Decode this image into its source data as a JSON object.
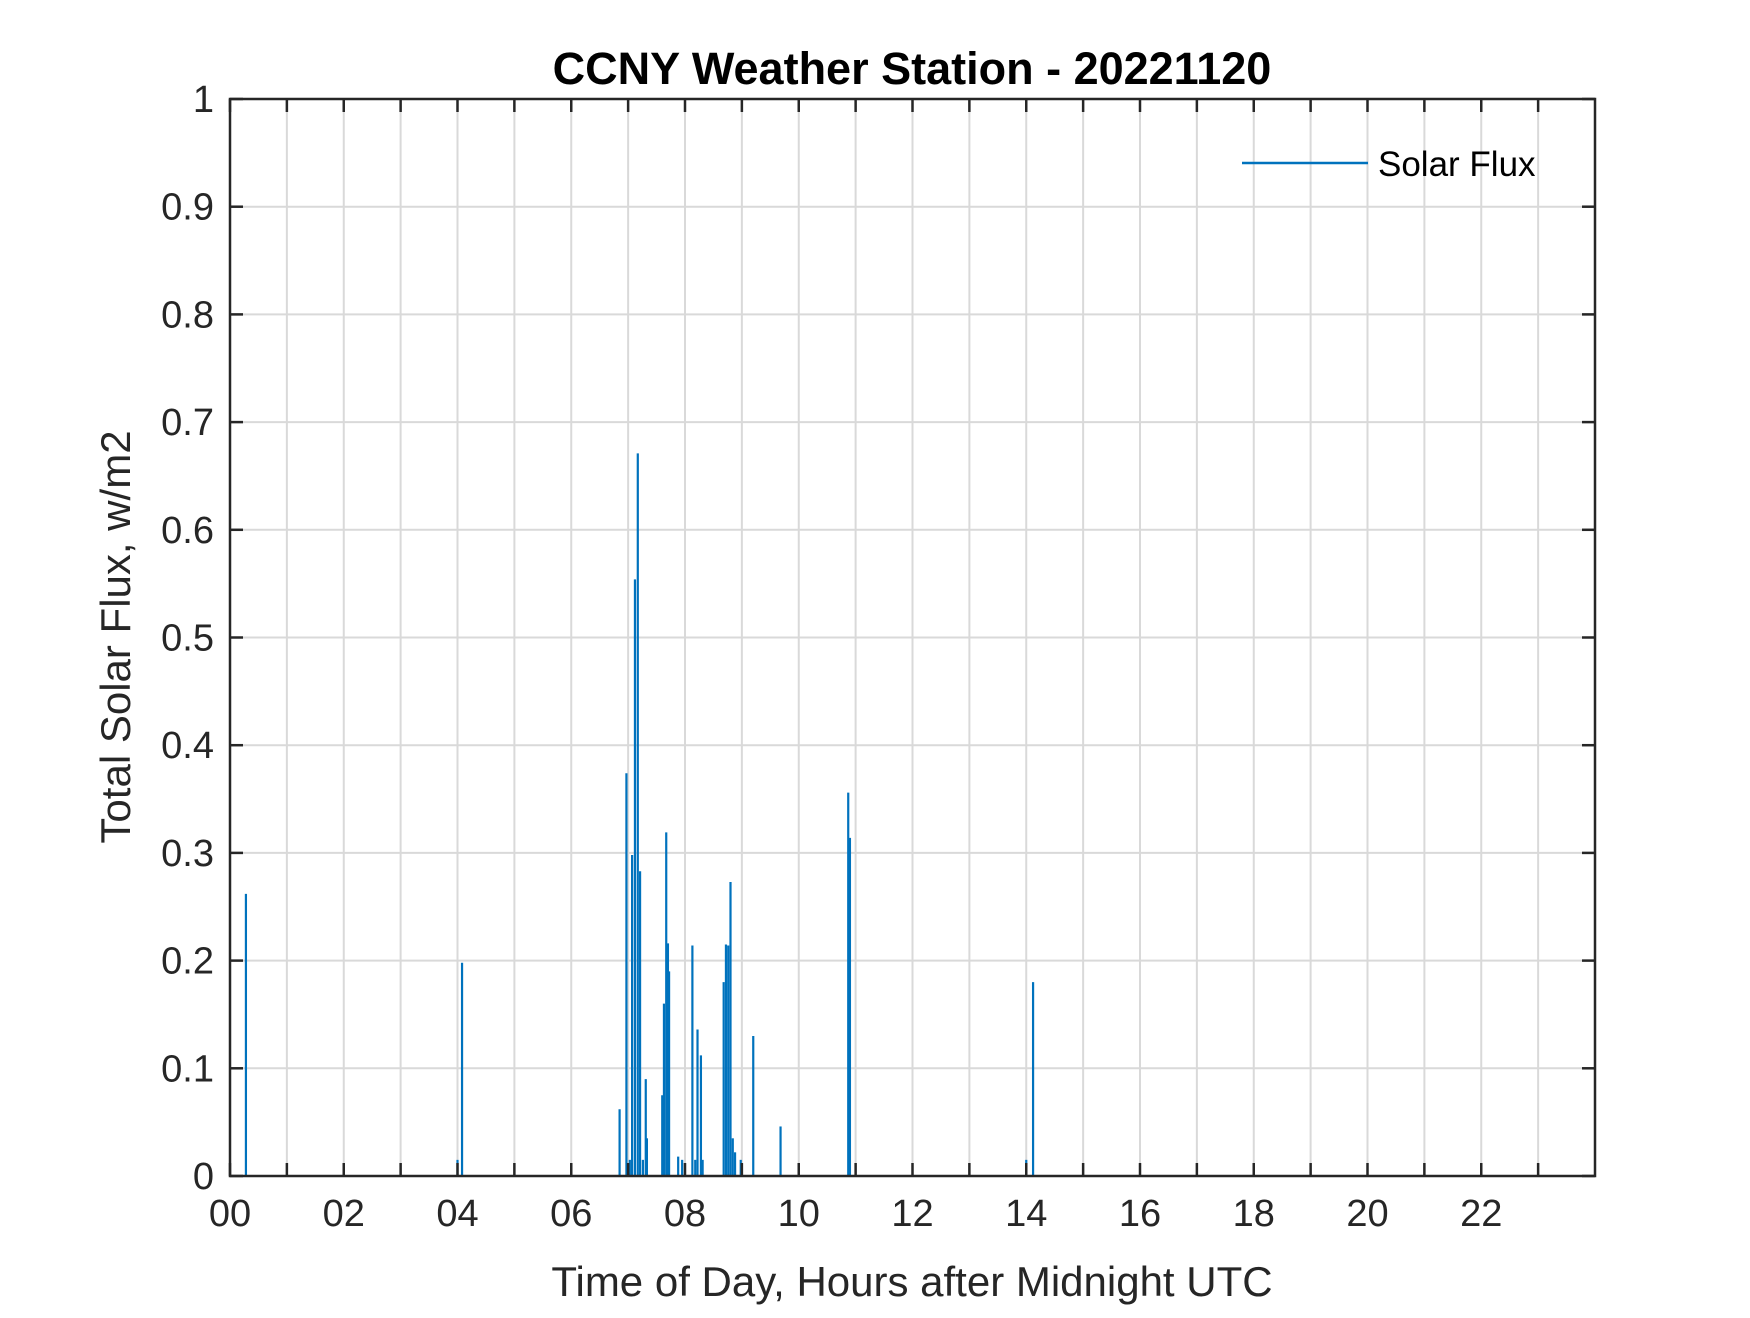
{
  "chart_data": {
    "type": "bar",
    "title": "CCNY Weather Station - 20221120",
    "xlabel": "Time of Day, Hours after Midnight UTC",
    "ylabel": "Total Solar Flux, w/m2",
    "xlim": [
      0,
      24
    ],
    "ylim": [
      0,
      1
    ],
    "grid": true,
    "legend_position": "top-right",
    "x_major_ticks": [
      0,
      2,
      4,
      6,
      8,
      10,
      12,
      14,
      16,
      18,
      20,
      22
    ],
    "x_tick_labels": [
      "00",
      "02",
      "04",
      "06",
      "08",
      "10",
      "12",
      "14",
      "16",
      "18",
      "20",
      "22"
    ],
    "y_ticks": [
      0,
      0.1,
      0.2,
      0.3,
      0.4,
      0.5,
      0.6,
      0.7,
      0.8,
      0.9,
      1
    ],
    "y_tick_labels": [
      "0",
      "0.1",
      "0.2",
      "0.3",
      "0.4",
      "0.5",
      "0.6",
      "0.7",
      "0.8",
      "0.9",
      "1"
    ],
    "series": [
      {
        "name": "Solar Flux",
        "color": "#0072BD",
        "x": [
          0.28,
          4.0,
          4.08,
          6.85,
          6.97,
          7.03,
          7.07,
          7.12,
          7.17,
          7.21,
          7.26,
          7.31,
          7.33,
          7.6,
          7.63,
          7.67,
          7.7,
          7.72,
          7.88,
          7.95,
          8.13,
          8.18,
          8.22,
          8.28,
          8.31,
          8.68,
          8.72,
          8.76,
          8.8,
          8.84,
          8.88,
          8.98,
          9.2,
          9.68,
          10.87,
          10.9,
          14.0,
          14.12
        ],
        "values": [
          0.262,
          0.015,
          0.198,
          0.062,
          0.374,
          0.015,
          0.298,
          0.554,
          0.671,
          0.283,
          0.015,
          0.09,
          0.035,
          0.075,
          0.16,
          0.319,
          0.216,
          0.19,
          0.018,
          0.015,
          0.214,
          0.015,
          0.136,
          0.112,
          0.015,
          0.18,
          0.215,
          0.214,
          0.273,
          0.035,
          0.022,
          0.015,
          0.13,
          0.046,
          0.356,
          0.314,
          0.015,
          0.18
        ]
      }
    ]
  }
}
